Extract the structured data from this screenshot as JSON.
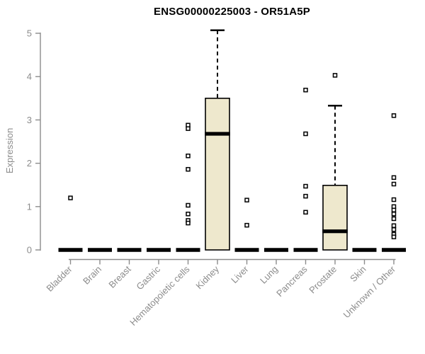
{
  "figure": {
    "title": "ENSG00000225003 - OR51A5P",
    "y_axis_label": "Expression"
  },
  "chart_data": {
    "type": "boxplot",
    "title": "ENSG00000225003 - OR51A5P",
    "xlabel": "",
    "ylabel": "Expression",
    "ylim": [
      0,
      5
    ],
    "yticks": [
      0,
      1,
      2,
      3,
      4,
      5
    ],
    "grid": false,
    "legend": "none",
    "categories": [
      "Bladder",
      "Brain",
      "Breast",
      "Gastric",
      "Hematopoietic cells",
      "Kidney",
      "Liver",
      "Lung",
      "Pancreas",
      "Prostate",
      "Skin",
      "Unknown / Other"
    ],
    "boxes": [
      {
        "category": "Bladder",
        "q1": 0,
        "median": 0,
        "q3": 0,
        "whisker_low": 0,
        "whisker_high": 0,
        "outliers": [
          1.2
        ]
      },
      {
        "category": "Brain",
        "q1": 0,
        "median": 0,
        "q3": 0,
        "whisker_low": 0,
        "whisker_high": 0,
        "outliers": []
      },
      {
        "category": "Breast",
        "q1": 0,
        "median": 0,
        "q3": 0,
        "whisker_low": 0,
        "whisker_high": 0,
        "outliers": []
      },
      {
        "category": "Gastric",
        "q1": 0,
        "median": 0,
        "q3": 0,
        "whisker_low": 0,
        "whisker_high": 0,
        "outliers": []
      },
      {
        "category": "Hematopoietic cells",
        "q1": 0,
        "median": 0,
        "q3": 0,
        "whisker_low": 0,
        "whisker_high": 0,
        "outliers": [
          2.88,
          2.8,
          2.17,
          1.86,
          1.03,
          0.83,
          0.68,
          0.62
        ]
      },
      {
        "category": "Kidney",
        "q1": 0,
        "median": 2.68,
        "q3": 3.5,
        "whisker_low": 0,
        "whisker_high": 5.07,
        "outliers": []
      },
      {
        "category": "Liver",
        "q1": 0,
        "median": 0,
        "q3": 0,
        "whisker_low": 0,
        "whisker_high": 0,
        "outliers": [
          1.15,
          0.57
        ]
      },
      {
        "category": "Lung",
        "q1": 0,
        "median": 0,
        "q3": 0,
        "whisker_low": 0,
        "whisker_high": 0,
        "outliers": []
      },
      {
        "category": "Pancreas",
        "q1": 0,
        "median": 0,
        "q3": 0,
        "whisker_low": 0,
        "whisker_high": 0,
        "outliers": [
          3.69,
          2.68,
          1.47,
          1.24,
          0.87
        ]
      },
      {
        "category": "Prostate",
        "q1": 0,
        "median": 0.43,
        "q3": 1.49,
        "whisker_low": 0,
        "whisker_high": 3.33,
        "outliers": [
          4.03
        ]
      },
      {
        "category": "Skin",
        "q1": 0,
        "median": 0,
        "q3": 0,
        "whisker_low": 0,
        "whisker_high": 0,
        "outliers": []
      },
      {
        "category": "Unknown / Other",
        "q1": 0,
        "median": 0,
        "q3": 0,
        "whisker_low": 0,
        "whisker_high": 0,
        "outliers": [
          3.1,
          1.67,
          1.52,
          1.16,
          1.0,
          0.92,
          0.83,
          0.72,
          0.56,
          0.47,
          0.36,
          0.3
        ]
      }
    ],
    "colors": {
      "box_fill": "#EEE8CD",
      "box_stroke": "#000000",
      "median": "#000000",
      "zero_bar": "#000000",
      "outlier_stroke": "#000000",
      "outlier_fill": "#FFFFFF",
      "axis": "#8C8C8C",
      "tick_label": "#8C8C8C",
      "title": "#000000",
      "background": "#FFFFFF"
    }
  }
}
